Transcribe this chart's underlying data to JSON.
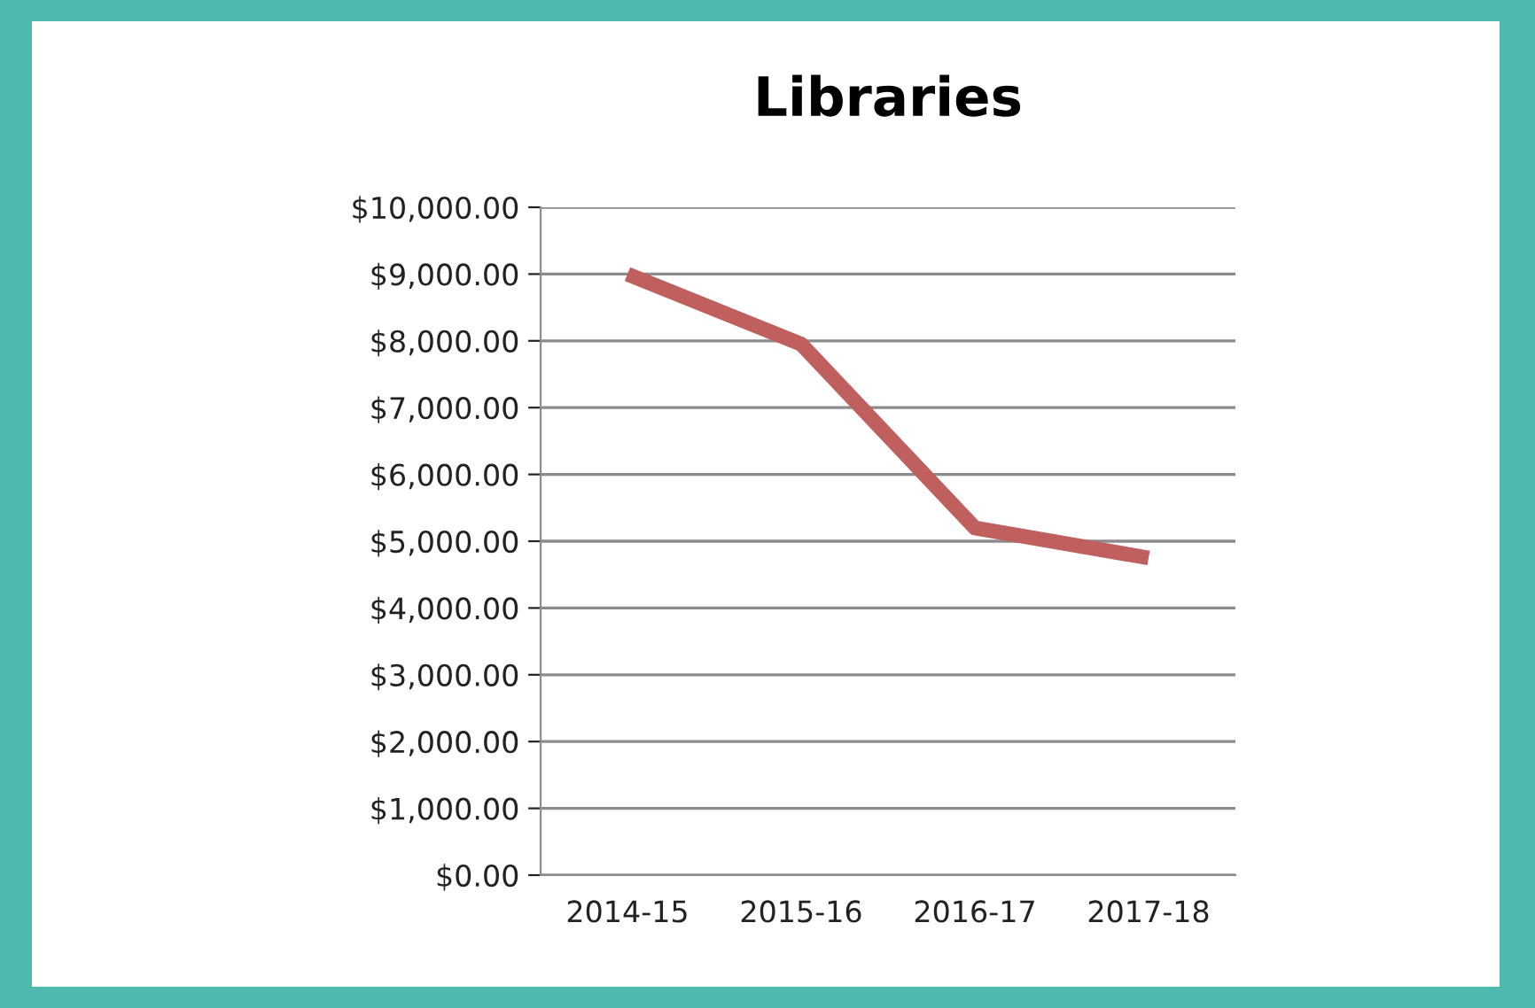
{
  "chart_data": {
    "type": "line",
    "title": "Libraries",
    "categories": [
      "2014-15",
      "2015-16",
      "2016-17",
      "2017-18"
    ],
    "series": [
      {
        "color": "#c0605e",
        "values": [
          9000,
          7950,
          5200,
          4750
        ]
      }
    ],
    "ylim": [
      0,
      10000
    ],
    "yticks": [
      {
        "value": 0,
        "label": "$0.00"
      },
      {
        "value": 1000,
        "label": "$1,000.00"
      },
      {
        "value": 2000,
        "label": "$2,000.00"
      },
      {
        "value": 3000,
        "label": "$3,000.00"
      },
      {
        "value": 4000,
        "label": "$4,000.00"
      },
      {
        "value": 5000,
        "label": "$5,000.00"
      },
      {
        "value": 6000,
        "label": "$6,000.00"
      },
      {
        "value": 7000,
        "label": "$7,000.00"
      },
      {
        "value": 8000,
        "label": "$8,000.00"
      },
      {
        "value": 9000,
        "label": "$9,000.00"
      },
      {
        "value": 10000,
        "label": "$10,000.00"
      }
    ],
    "grid": "y",
    "legend": false,
    "marker": "none",
    "line_style": "solid"
  }
}
